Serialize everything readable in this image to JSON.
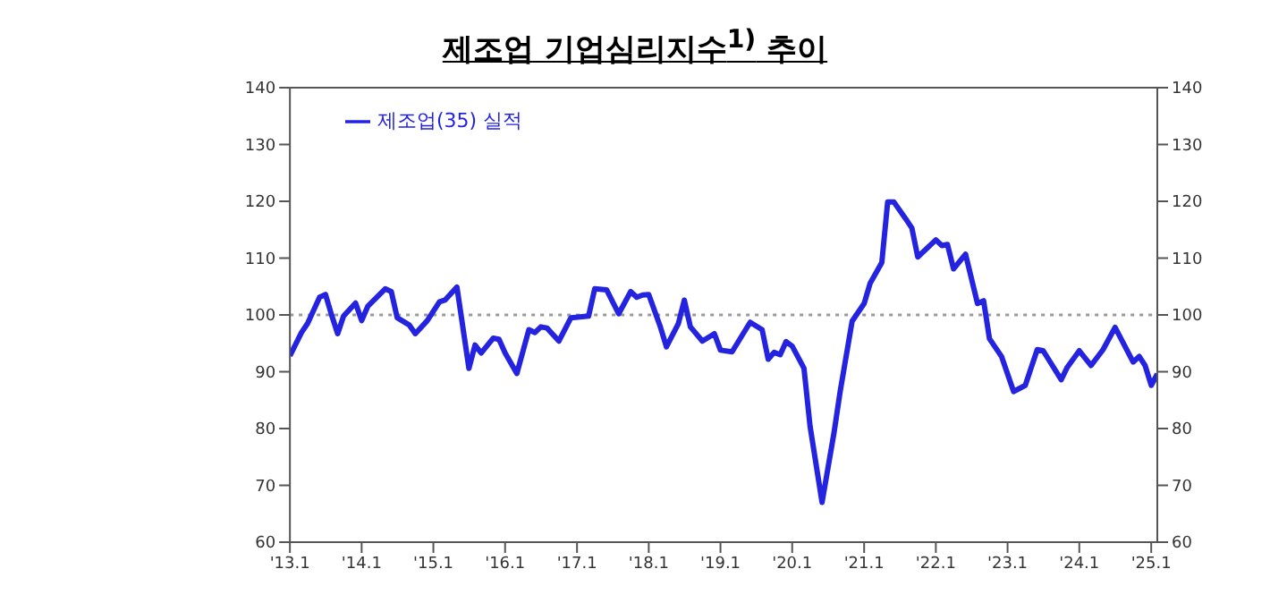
{
  "chart_data": {
    "type": "line",
    "title": "제조업 기업심리지수$^{1)}$ 추이",
    "x": [
      "2013-01",
      "2013-03",
      "2013-04",
      "2013-06",
      "2013-07",
      "2013-08",
      "2013-09",
      "2013-10",
      "2013-12",
      "2014-01",
      "2014-02",
      "2014-05",
      "2014-06",
      "2014-07",
      "2014-09",
      "2014-10",
      "2014-12",
      "2015-02",
      "2015-03",
      "2015-05",
      "2015-07",
      "2015-08",
      "2015-09",
      "2015-11",
      "2015-12",
      "2016-01",
      "2016-03",
      "2016-05",
      "2016-06",
      "2016-07",
      "2016-08",
      "2016-10",
      "2016-12",
      "2017-03",
      "2017-04",
      "2017-06",
      "2017-08",
      "2017-10",
      "2017-11",
      "2017-12",
      "2018-01",
      "2018-03",
      "2018-04",
      "2018-06",
      "2018-07",
      "2018-08",
      "2018-10",
      "2018-12",
      "2019-01",
      "2019-03",
      "2019-06",
      "2019-08",
      "2019-09",
      "2019-10",
      "2019-11",
      "2019-12",
      "2020-01",
      "2020-03",
      "2020-04",
      "2020-06",
      "2020-08",
      "2020-09",
      "2020-11",
      "2021-01",
      "2021-02",
      "2021-04",
      "2021-05",
      "2021-06",
      "2021-08",
      "2021-09",
      "2021-10",
      "2022-01",
      "2022-02",
      "2022-03",
      "2022-04",
      "2022-06",
      "2022-08",
      "2022-09",
      "2022-10",
      "2022-12",
      "2023-02",
      "2023-04",
      "2023-06",
      "2023-07",
      "2023-10",
      "2023-11",
      "2024-01",
      "2024-03",
      "2024-05",
      "2024-07",
      "2024-10",
      "2024-11",
      "2024-12",
      "2025-01",
      "2025-02"
    ],
    "series": [
      {
        "name": "제조업(35) 실적",
        "color": "#2323e0",
        "values": [
          92.8,
          96.9,
          98.5,
          103.1,
          103.6,
          100,
          96.7,
          99.8,
          102.1,
          99,
          101.5,
          104.6,
          104.1,
          99.5,
          98.2,
          96.7,
          99,
          102.3,
          102.6,
          104.9,
          90.6,
          94.7,
          93.3,
          95.9,
          95.7,
          93.3,
          89.7,
          97.4,
          96.9,
          97.9,
          97.7,
          95.4,
          99.5,
          99.8,
          104.6,
          104.4,
          100.2,
          104.1,
          103.1,
          103.5,
          103.6,
          97.9,
          94.4,
          98.5,
          102.6,
          97.9,
          95.4,
          96.7,
          93.8,
          93.5,
          98.7,
          97.4,
          92.2,
          93.4,
          93,
          95.3,
          94.5,
          90.6,
          80.4,
          67,
          79.3,
          86.5,
          98.9,
          102,
          105.6,
          109.2,
          119.9,
          119.9,
          116.9,
          115.3,
          110.2,
          113.2,
          112.2,
          112.4,
          108.1,
          110.7,
          102,
          102.5,
          95.8,
          92.7,
          86.5,
          87.6,
          93.9,
          93.7,
          88.6,
          90.8,
          93.7,
          91.1,
          93.9,
          97.8,
          91.7,
          92.7,
          91.1,
          87.6,
          89.6
        ]
      }
    ],
    "xlim": [
      "2013-01",
      "2025-02"
    ],
    "xticks": [
      {
        "value": "2013-01",
        "label": "'13.1"
      },
      {
        "value": "2014-01",
        "label": "'14.1"
      },
      {
        "value": "2015-01",
        "label": "'15.1"
      },
      {
        "value": "2016-01",
        "label": "'16.1"
      },
      {
        "value": "2017-01",
        "label": "'17.1"
      },
      {
        "value": "2018-01",
        "label": "'18.1"
      },
      {
        "value": "2019-01",
        "label": "'19.1"
      },
      {
        "value": "2020-01",
        "label": "'20.1"
      },
      {
        "value": "2021-01",
        "label": "'21.1"
      },
      {
        "value": "2022-01",
        "label": "'22.1"
      },
      {
        "value": "2023-01",
        "label": "'23.1"
      },
      {
        "value": "2024-01",
        "label": "'24.1"
      },
      {
        "value": "2025-01",
        "label": "'25.1"
      }
    ],
    "ylim": [
      60,
      140
    ],
    "yticks": [
      60,
      70,
      80,
      90,
      100,
      110,
      120,
      130,
      140
    ],
    "y2lim": [
      60,
      140
    ],
    "y2ticks": [
      60,
      70,
      80,
      90,
      100,
      110,
      120,
      130,
      140
    ],
    "ref_lines": [
      {
        "axis": "y",
        "value": 100,
        "color": "#999999",
        "line_style": "dotted"
      }
    ],
    "legend": "top left",
    "grid": false,
    "marker": "none",
    "line_style": "solid"
  }
}
